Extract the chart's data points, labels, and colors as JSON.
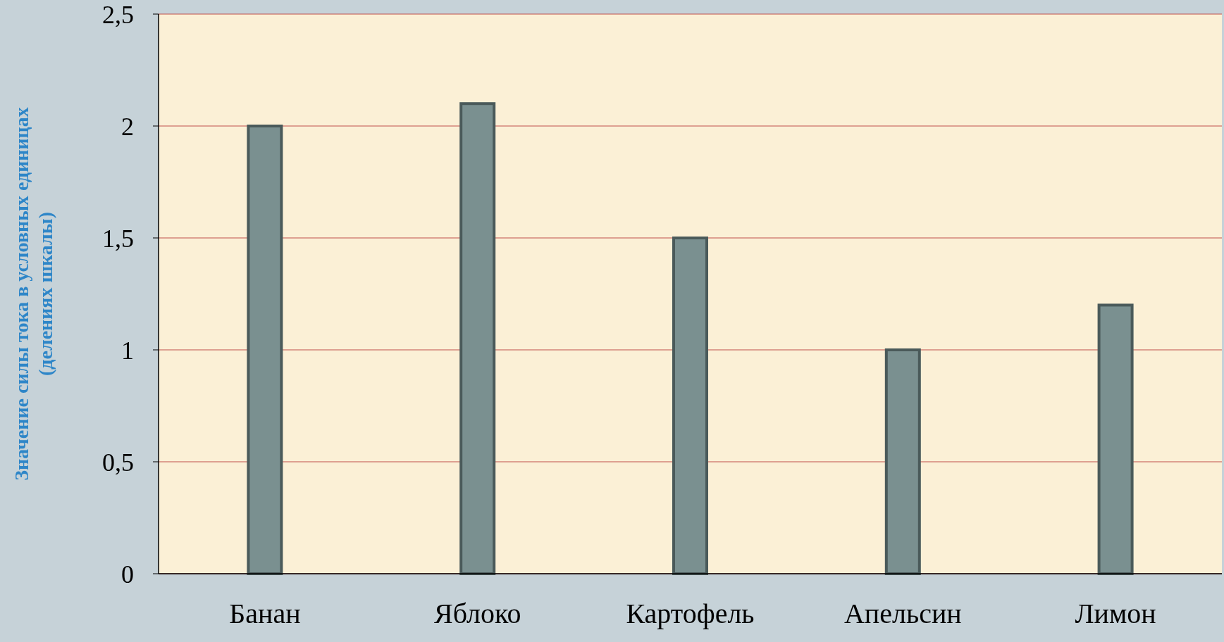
{
  "chart_data": {
    "type": "bar",
    "ylabel": "Значение силы тока в условных единицах\n(делениях шкалы)",
    "categories": [
      "Банан",
      "Яблоко",
      "Картофель",
      "Апельсин",
      "Лимон"
    ],
    "values": [
      2,
      2.1,
      1.5,
      1,
      1.2
    ],
    "color": "#7a9090",
    "ylim": [
      0,
      2.5
    ],
    "yticks": [
      0,
      {
        "value": 0.5,
        "label": "0,5"
      },
      1,
      {
        "value": 1.5,
        "label": "1,5"
      },
      2,
      {
        "value": 2.5,
        "label": "2,5"
      }
    ],
    "grid": "y"
  }
}
